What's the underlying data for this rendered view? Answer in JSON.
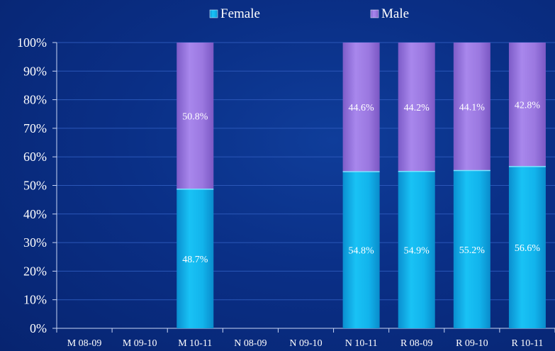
{
  "chart_data": {
    "type": "bar",
    "stacked": true,
    "categories": [
      "M 08-09",
      "M 09-10",
      "M 10-11",
      "N 08-09",
      "N 09-10",
      "N 10-11",
      "R 08-09",
      "R 09-10",
      "R 10-11"
    ],
    "series": [
      {
        "name": "Female",
        "values": [
          null,
          null,
          48.7,
          null,
          null,
          54.8,
          54.9,
          55.2,
          56.6
        ],
        "labels": [
          "",
          "",
          "48.7%",
          "",
          "",
          "54.8%",
          "54.9%",
          "55.2%",
          "56.6%"
        ],
        "color": "#12b4ec"
      },
      {
        "name": "Male",
        "values": [
          null,
          null,
          50.8,
          null,
          null,
          44.6,
          44.2,
          44.1,
          42.8
        ],
        "labels": [
          "",
          "",
          "50.8%",
          "",
          "",
          "44.6%",
          "44.2%",
          "44.1%",
          "42.8%"
        ],
        "color": "#9b78e0"
      }
    ],
    "y_ticks": [
      "0%",
      "10%",
      "20%",
      "30%",
      "40%",
      "50%",
      "60%",
      "70%",
      "80%",
      "90%",
      "100%"
    ],
    "ylim": [
      0,
      100
    ],
    "grid": true,
    "legend_position": "top",
    "title": "",
    "xlabel": "",
    "ylabel": ""
  },
  "colors": {
    "background": "#0a2f86",
    "grid": "#2b57b8",
    "axis": "#c9d6f5",
    "text": "#ffffff"
  }
}
